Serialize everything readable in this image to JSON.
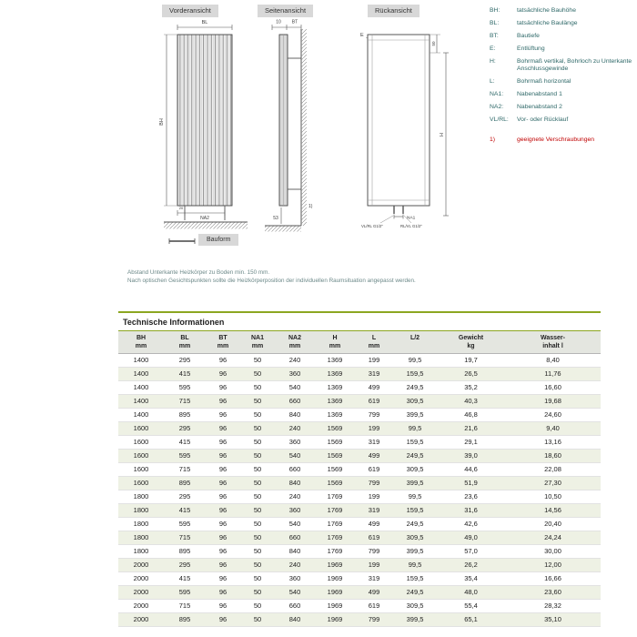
{
  "drawings": {
    "front_title": "Vorderansicht",
    "side_title": "Seitenansicht",
    "rear_title": "Rückansicht",
    "bauform_label": "Bauform",
    "front_labels": {
      "bl": "BL",
      "bh": "BH",
      "na2": "NA2",
      "d20": "20"
    },
    "side_labels": {
      "d10": "10",
      "bt": "BT",
      "d53": "53",
      "footnote": "1)"
    },
    "rear_labels": {
      "e": "E",
      "d50": "50",
      "h": "H",
      "na1": "NA1",
      "vl": "VL/RL G1/2\"",
      "rl": "RL/VL G1/2\""
    }
  },
  "legend": {
    "items": [
      {
        "abbr": "BH:",
        "text": "tatsächliche Bauhöhe"
      },
      {
        "abbr": "BL:",
        "text": "tatsächliche Baulänge"
      },
      {
        "abbr": "BT:",
        "text": "Bautiefe"
      },
      {
        "abbr": "E:",
        "text": "Entlüftung"
      },
      {
        "abbr": "H:",
        "text": "Bohrmaß vertikal, Bohrloch zu Unterkante Anschlussgewinde"
      },
      {
        "abbr": "L:",
        "text": "Bohrmaß horizontal"
      },
      {
        "abbr": "NA1:",
        "text": "Nabenabstand 1"
      },
      {
        "abbr": "NA2:",
        "text": "Nabenabstand 2"
      },
      {
        "abbr": "VL/RL:",
        "text": "Vor- oder Rücklauf"
      }
    ],
    "footnote": {
      "abbr": "1)",
      "text": "geeignete Verschraubungen"
    }
  },
  "note": {
    "line1": "Abstand Unterkante Heizkörper zu Boden min. 150 mm.",
    "line2": "Nach optischen Gesichtspunkten sollte die Heizkörperposition der individuellen Raumsituation angepasst werden."
  },
  "table": {
    "title": "Technische Informationen",
    "headers": [
      {
        "l1": "BH",
        "l2": "mm"
      },
      {
        "l1": "BL",
        "l2": "mm"
      },
      {
        "l1": "BT",
        "l2": "mm"
      },
      {
        "l1": "NA1",
        "l2": "mm"
      },
      {
        "l1": "NA2",
        "l2": "mm"
      },
      {
        "l1": "H",
        "l2": "mm"
      },
      {
        "l1": "L",
        "l2": "mm"
      },
      {
        "l1": "L/2",
        "l2": ""
      },
      {
        "l1": "Gewicht",
        "l2": "kg"
      },
      {
        "l1": "Wasser-",
        "l2": "inhalt l"
      }
    ],
    "rows": [
      [
        "1400",
        "295",
        "96",
        "50",
        "240",
        "1369",
        "199",
        "99,5",
        "19,7",
        "8,40"
      ],
      [
        "1400",
        "415",
        "96",
        "50",
        "360",
        "1369",
        "319",
        "159,5",
        "26,5",
        "11,76"
      ],
      [
        "1400",
        "595",
        "96",
        "50",
        "540",
        "1369",
        "499",
        "249,5",
        "35,2",
        "16,60"
      ],
      [
        "1400",
        "715",
        "96",
        "50",
        "660",
        "1369",
        "619",
        "309,5",
        "40,3",
        "19,68"
      ],
      [
        "1400",
        "895",
        "96",
        "50",
        "840",
        "1369",
        "799",
        "399,5",
        "46,8",
        "24,60"
      ],
      [
        "1600",
        "295",
        "96",
        "50",
        "240",
        "1569",
        "199",
        "99,5",
        "21,6",
        "9,40"
      ],
      [
        "1600",
        "415",
        "96",
        "50",
        "360",
        "1569",
        "319",
        "159,5",
        "29,1",
        "13,16"
      ],
      [
        "1600",
        "595",
        "96",
        "50",
        "540",
        "1569",
        "499",
        "249,5",
        "39,0",
        "18,60"
      ],
      [
        "1600",
        "715",
        "96",
        "50",
        "660",
        "1569",
        "619",
        "309,5",
        "44,6",
        "22,08"
      ],
      [
        "1600",
        "895",
        "96",
        "50",
        "840",
        "1569",
        "799",
        "399,5",
        "51,9",
        "27,30"
      ],
      [
        "1800",
        "295",
        "96",
        "50",
        "240",
        "1769",
        "199",
        "99,5",
        "23,6",
        "10,50"
      ],
      [
        "1800",
        "415",
        "96",
        "50",
        "360",
        "1769",
        "319",
        "159,5",
        "31,6",
        "14,56"
      ],
      [
        "1800",
        "595",
        "96",
        "50",
        "540",
        "1769",
        "499",
        "249,5",
        "42,6",
        "20,40"
      ],
      [
        "1800",
        "715",
        "96",
        "50",
        "660",
        "1769",
        "619",
        "309,5",
        "49,0",
        "24,24"
      ],
      [
        "1800",
        "895",
        "96",
        "50",
        "840",
        "1769",
        "799",
        "399,5",
        "57,0",
        "30,00"
      ],
      [
        "2000",
        "295",
        "96",
        "50",
        "240",
        "1969",
        "199",
        "99,5",
        "26,2",
        "12,00"
      ],
      [
        "2000",
        "415",
        "96",
        "50",
        "360",
        "1969",
        "319",
        "159,5",
        "35,4",
        "16,66"
      ],
      [
        "2000",
        "595",
        "96",
        "50",
        "540",
        "1969",
        "499",
        "249,5",
        "48,0",
        "23,60"
      ],
      [
        "2000",
        "715",
        "96",
        "50",
        "660",
        "1969",
        "619",
        "309,5",
        "55,4",
        "28,32"
      ],
      [
        "2000",
        "895",
        "96",
        "50",
        "840",
        "1969",
        "799",
        "399,5",
        "65,1",
        "35,10"
      ]
    ]
  },
  "colors": {
    "accent_green": "#8ca621",
    "legend_teal": "#2e6868",
    "footnote_red": "#c00000"
  }
}
